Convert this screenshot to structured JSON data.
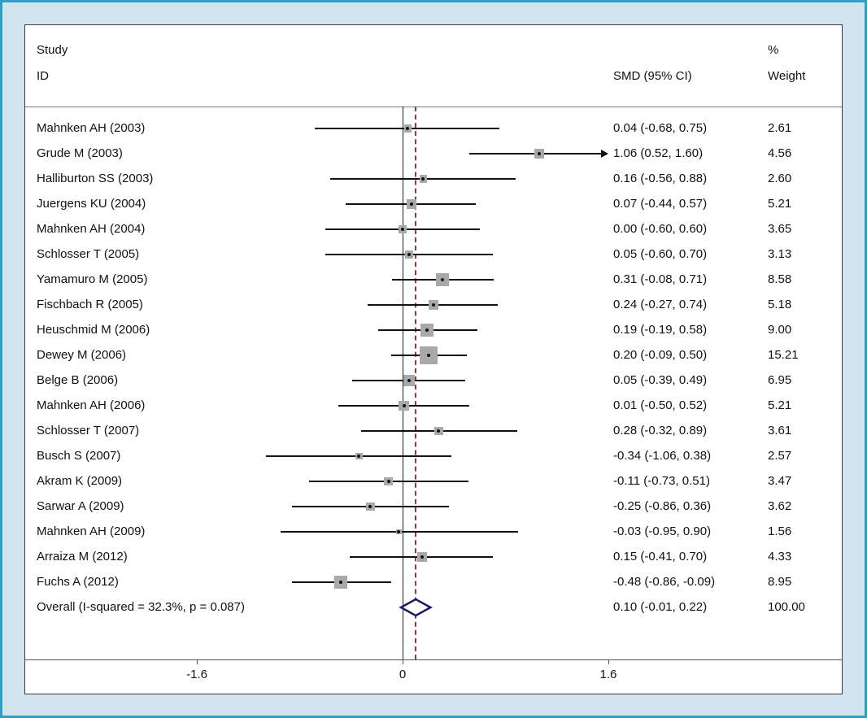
{
  "frame": {
    "border_color": "#2f9fc2",
    "margin_color": "#d2e4ef",
    "panel_background": "#ffffff"
  },
  "header": {
    "study_line1": "Study",
    "study_line2": "ID",
    "smd": "SMD (95% CI)",
    "weight_line1": "%",
    "weight_line2": "Weight"
  },
  "chart_data": {
    "type": "forest",
    "title": "",
    "xlabel": "",
    "xlim": [
      -1.6,
      1.6
    ],
    "x_ticks": [
      -1.6,
      0,
      1.6
    ],
    "x_tick_labels": [
      "-1.6",
      "0",
      "1.6"
    ],
    "zero_line": 0,
    "overall_dashed_line": 0.1,
    "marker_color": "#a9a9a9",
    "ci_color": "#111111",
    "dashed_line_color": "#a0362f",
    "diamond_color": "#1a1a6a",
    "studies": [
      {
        "id": "Mahnken AH (2003)",
        "smd": 0.04,
        "lo": -0.68,
        "hi": 0.75,
        "smd_label": "0.04 (-0.68, 0.75)",
        "weight": 2.61,
        "weight_label": "2.61"
      },
      {
        "id": "Grude M (2003)",
        "smd": 1.06,
        "lo": 0.52,
        "hi": 1.6,
        "smd_label": "1.06 (0.52, 1.60)",
        "weight": 4.56,
        "weight_label": "4.56"
      },
      {
        "id": "Halliburton SS (2003)",
        "smd": 0.16,
        "lo": -0.56,
        "hi": 0.88,
        "smd_label": "0.16 (-0.56, 0.88)",
        "weight": 2.6,
        "weight_label": "2.60"
      },
      {
        "id": "Juergens KU (2004)",
        "smd": 0.07,
        "lo": -0.44,
        "hi": 0.57,
        "smd_label": "0.07 (-0.44, 0.57)",
        "weight": 5.21,
        "weight_label": "5.21"
      },
      {
        "id": "Mahnken AH (2004)",
        "smd": 0.0,
        "lo": -0.6,
        "hi": 0.6,
        "smd_label": "0.00 (-0.60, 0.60)",
        "weight": 3.65,
        "weight_label": "3.65"
      },
      {
        "id": "Schlosser T (2005)",
        "smd": 0.05,
        "lo": -0.6,
        "hi": 0.7,
        "smd_label": "0.05 (-0.60, 0.70)",
        "weight": 3.13,
        "weight_label": "3.13"
      },
      {
        "id": "Yamamuro M (2005)",
        "smd": 0.31,
        "lo": -0.08,
        "hi": 0.71,
        "smd_label": "0.31 (-0.08, 0.71)",
        "weight": 8.58,
        "weight_label": "8.58"
      },
      {
        "id": "Fischbach R (2005)",
        "smd": 0.24,
        "lo": -0.27,
        "hi": 0.74,
        "smd_label": "0.24 (-0.27, 0.74)",
        "weight": 5.18,
        "weight_label": "5.18"
      },
      {
        "id": "Heuschmid M (2006)",
        "smd": 0.19,
        "lo": -0.19,
        "hi": 0.58,
        "smd_label": "0.19 (-0.19, 0.58)",
        "weight": 9.0,
        "weight_label": "9.00"
      },
      {
        "id": "Dewey M (2006)",
        "smd": 0.2,
        "lo": -0.09,
        "hi": 0.5,
        "smd_label": "0.20 (-0.09, 0.50)",
        "weight": 15.21,
        "weight_label": "15.21"
      },
      {
        "id": "Belge B (2006)",
        "smd": 0.05,
        "lo": -0.39,
        "hi": 0.49,
        "smd_label": "0.05 (-0.39, 0.49)",
        "weight": 6.95,
        "weight_label": "6.95"
      },
      {
        "id": "Mahnken AH (2006)",
        "smd": 0.01,
        "lo": -0.5,
        "hi": 0.52,
        "smd_label": "0.01 (-0.50, 0.52)",
        "weight": 5.21,
        "weight_label": "5.21"
      },
      {
        "id": "Schlosser T (2007)",
        "smd": 0.28,
        "lo": -0.32,
        "hi": 0.89,
        "smd_label": "0.28 (-0.32, 0.89)",
        "weight": 3.61,
        "weight_label": "3.61"
      },
      {
        "id": "Busch S (2007)",
        "smd": -0.34,
        "lo": -1.06,
        "hi": 0.38,
        "smd_label": "-0.34 (-1.06, 0.38)",
        "weight": 2.57,
        "weight_label": "2.57"
      },
      {
        "id": "Akram K (2009)",
        "smd": -0.11,
        "lo": -0.73,
        "hi": 0.51,
        "smd_label": "-0.11 (-0.73, 0.51)",
        "weight": 3.47,
        "weight_label": "3.47"
      },
      {
        "id": "Sarwar A (2009)",
        "smd": -0.25,
        "lo": -0.86,
        "hi": 0.36,
        "smd_label": "-0.25 (-0.86, 0.36)",
        "weight": 3.62,
        "weight_label": "3.62"
      },
      {
        "id": "Mahnken AH (2009)",
        "smd": -0.03,
        "lo": -0.95,
        "hi": 0.9,
        "smd_label": "-0.03 (-0.95, 0.90)",
        "weight": 1.56,
        "weight_label": "1.56"
      },
      {
        "id": "Arraiza M (2012)",
        "smd": 0.15,
        "lo": -0.41,
        "hi": 0.7,
        "smd_label": "0.15 (-0.41, 0.70)",
        "weight": 4.33,
        "weight_label": "4.33"
      },
      {
        "id": "Fuchs A (2012)",
        "smd": -0.48,
        "lo": -0.86,
        "hi": -0.09,
        "smd_label": "-0.48 (-0.86, -0.09)",
        "weight": 8.95,
        "weight_label": "8.95"
      }
    ],
    "overall": {
      "id": "Overall  (I-squared = 32.3%, p = 0.087)",
      "smd": 0.1,
      "lo": -0.01,
      "hi": 0.22,
      "smd_label": "0.10 (-0.01, 0.22)",
      "weight_label": "100.00"
    }
  }
}
